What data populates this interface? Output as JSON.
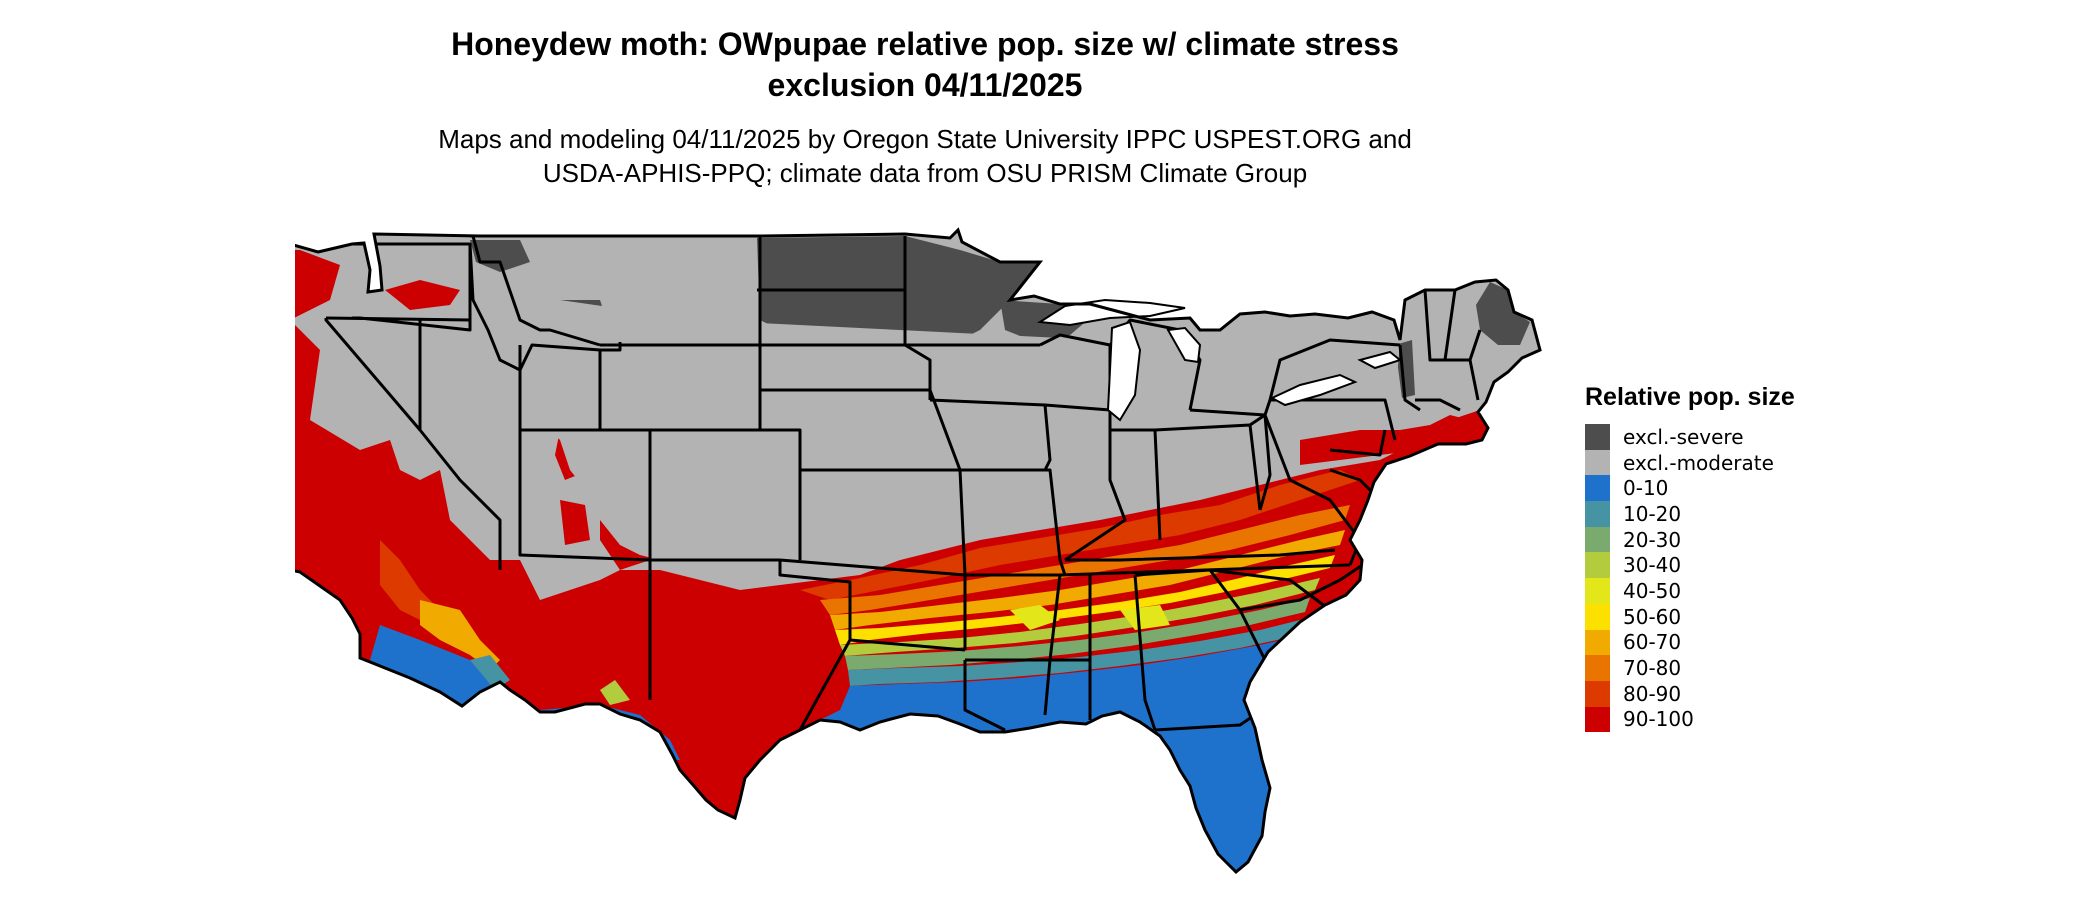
{
  "title": {
    "line1": "Honeydew moth: OWpupae relative pop. size w/ climate stress",
    "line2": "exclusion 04/11/2025"
  },
  "subtitle": {
    "line1": "Maps and modeling 04/11/2025 by Oregon State University IPPC USPEST.ORG and",
    "line2": "USDA-APHIS-PPQ; climate data from OSU PRISM Climate Group"
  },
  "legend": {
    "title": "Relative pop. size",
    "items": [
      {
        "label": "excl.-severe",
        "color": "#4d4d4d"
      },
      {
        "label": "excl.-moderate",
        "color": "#b3b3b3"
      },
      {
        "label": "0-10",
        "color": "#1f72cc"
      },
      {
        "label": "10-20",
        "color": "#4593a3"
      },
      {
        "label": "20-30",
        "color": "#7aaa6e"
      },
      {
        "label": "30-40",
        "color": "#b3cc3e"
      },
      {
        "label": "40-50",
        "color": "#e3e71a"
      },
      {
        "label": "50-60",
        "color": "#fce000"
      },
      {
        "label": "60-70",
        "color": "#f1aa00"
      },
      {
        "label": "70-80",
        "color": "#ea7400"
      },
      {
        "label": "80-90",
        "color": "#dd3a00"
      },
      {
        "label": "90-100",
        "color": "#cc0000"
      }
    ]
  }
}
